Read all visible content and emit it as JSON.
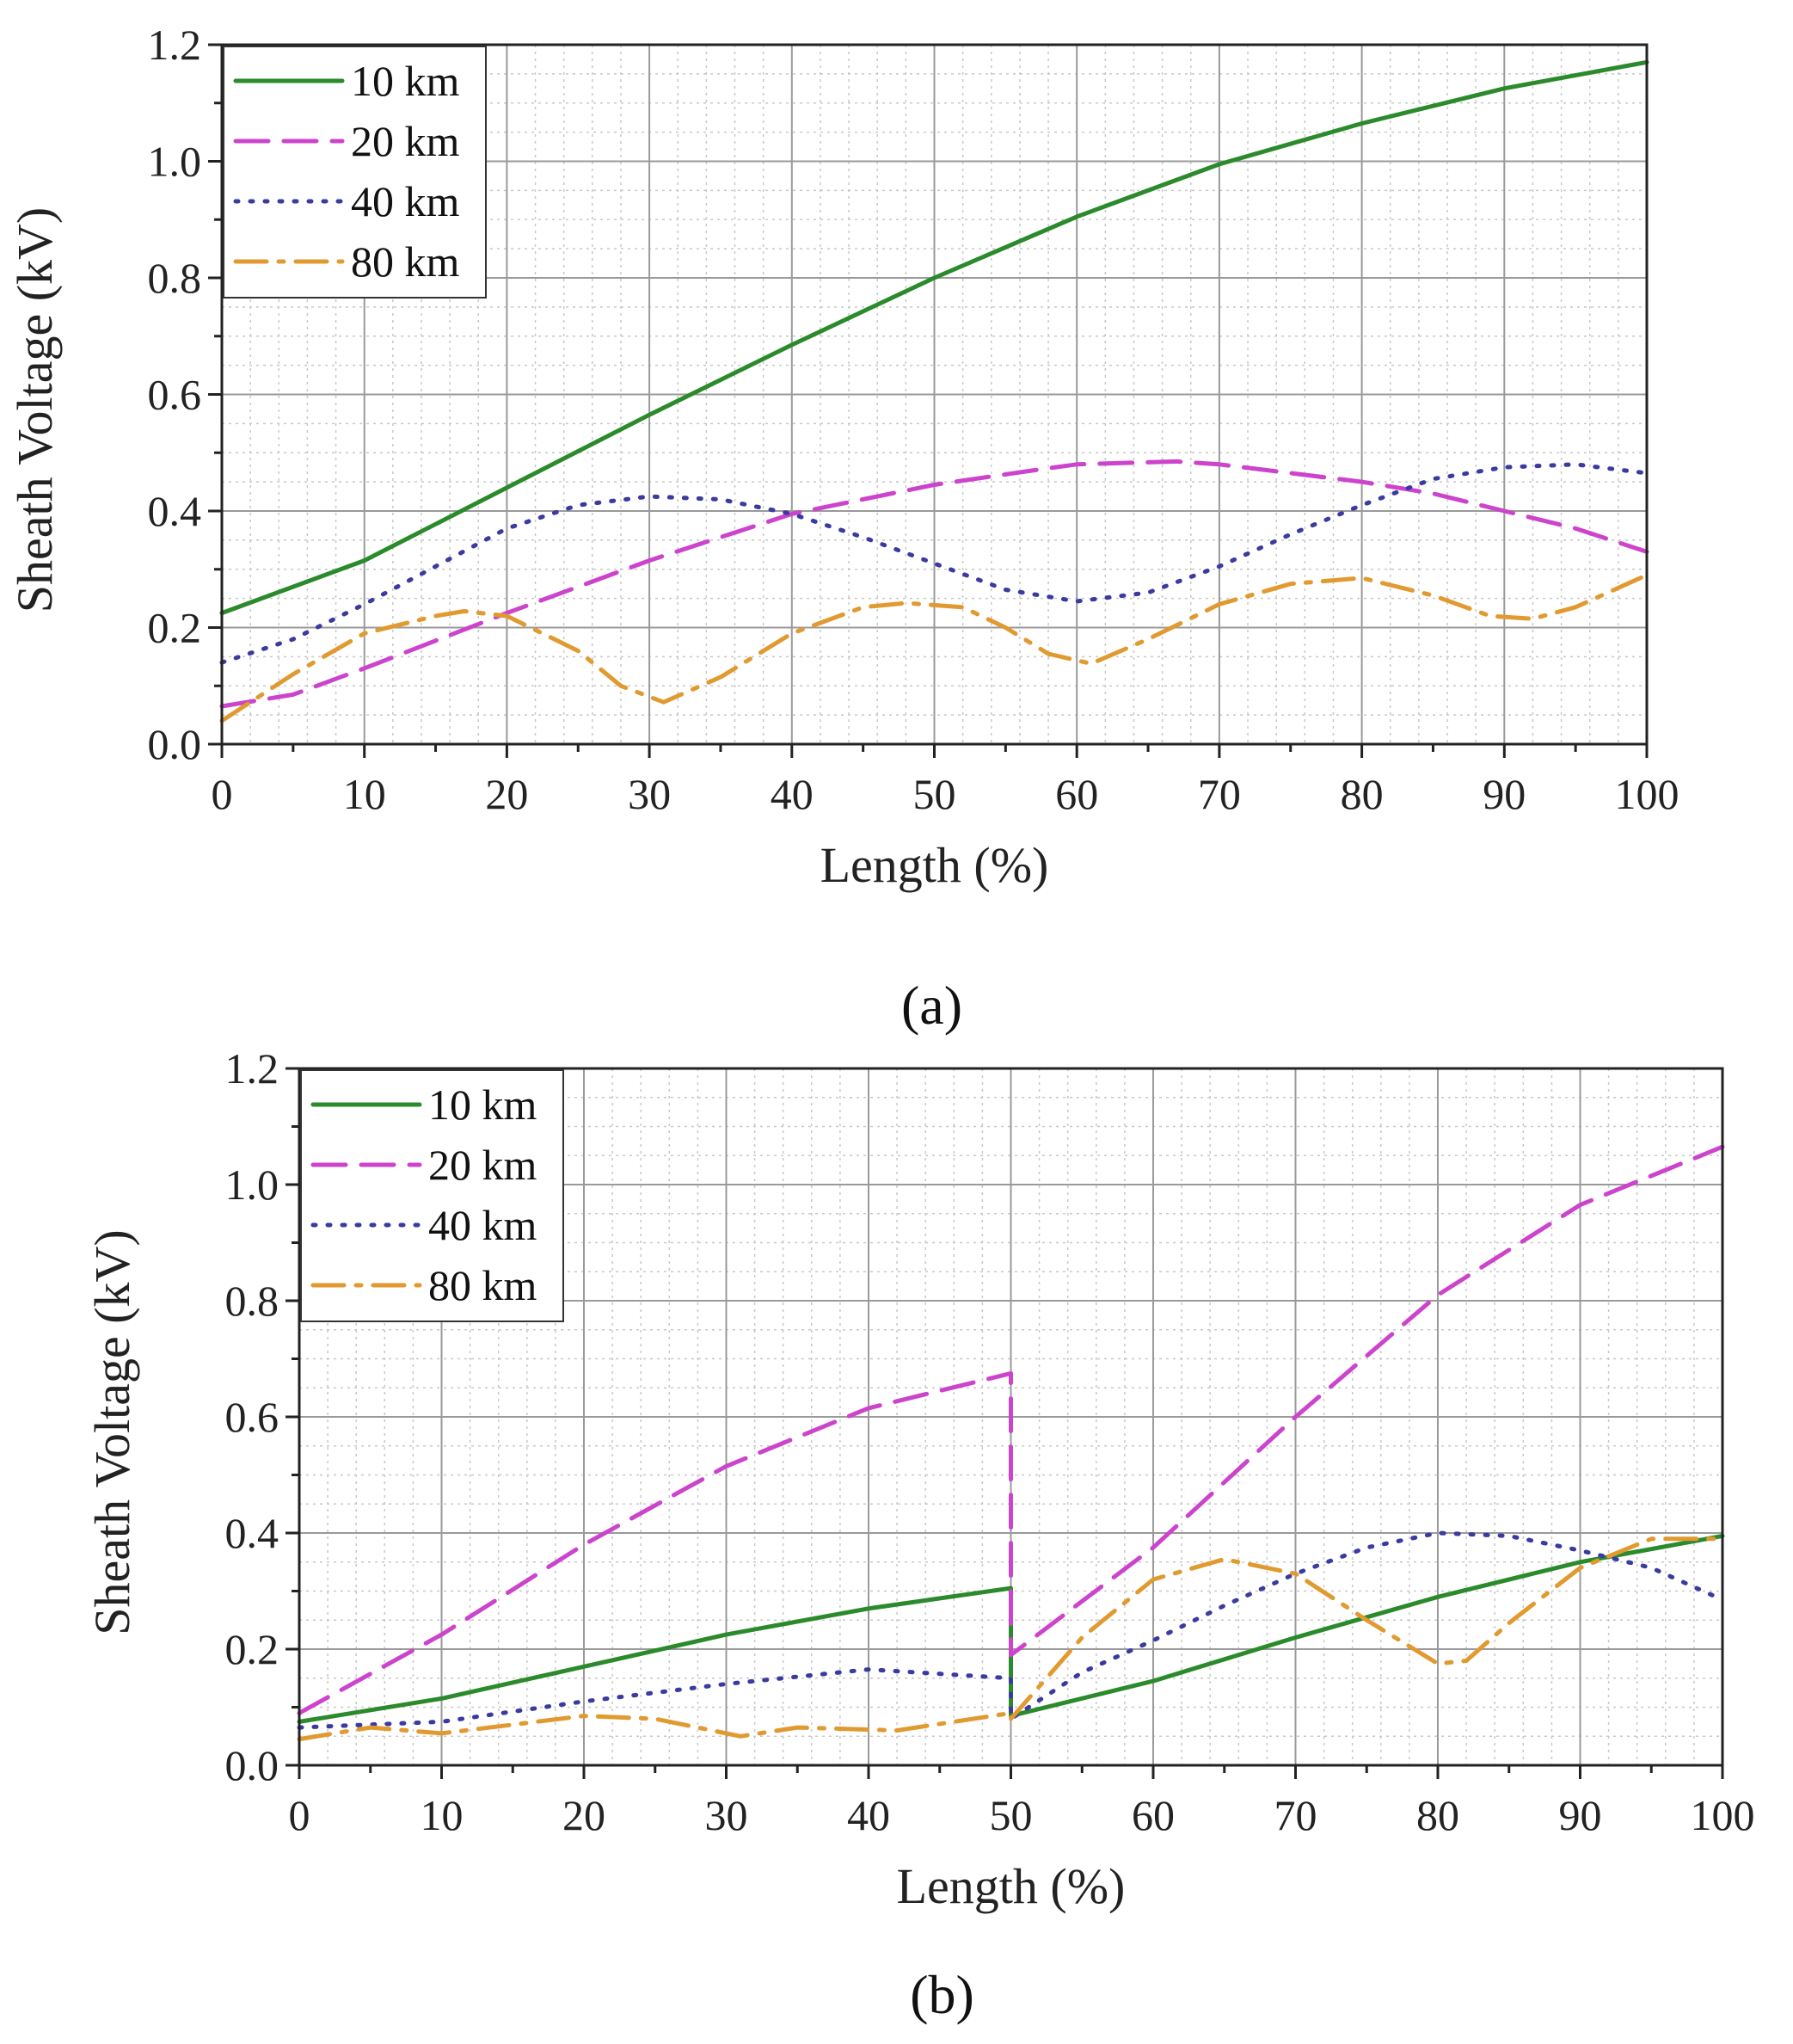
{
  "chart_data": [
    {
      "type": "line",
      "panel_label": "(a)",
      "title": "",
      "xlabel": "Length (%)",
      "ylabel": "Sheath Voltage (kV)",
      "xlim": [
        0,
        100
      ],
      "ylim": [
        0,
        1.2
      ],
      "x_ticks": [
        0,
        10,
        20,
        30,
        40,
        50,
        60,
        70,
        80,
        90,
        100
      ],
      "x_tick_labels": [
        "0",
        "10",
        "20",
        "30",
        "40",
        "50",
        "60",
        "70",
        "80",
        "90",
        "100"
      ],
      "y_ticks": [
        0,
        0.2,
        0.4,
        0.6,
        0.8,
        1.0,
        1.2
      ],
      "y_tick_labels": [
        "0.0",
        "0.2",
        "0.4",
        "0.6",
        "0.8",
        "1.0",
        "1.2"
      ],
      "grid": true,
      "legend_position": "top-left",
      "series": [
        {
          "name": "10 km",
          "color": "#2b8a2b",
          "style": "solid",
          "x": [
            0,
            10,
            20,
            30,
            40,
            50,
            60,
            70,
            80,
            90,
            100
          ],
          "y": [
            0.225,
            0.315,
            0.44,
            0.565,
            0.685,
            0.8,
            0.905,
            0.995,
            1.065,
            1.125,
            1.17
          ]
        },
        {
          "name": "20 km",
          "color": "#cc44cc",
          "style": "dash",
          "x": [
            0,
            5,
            10,
            20,
            30,
            40,
            50,
            57,
            60,
            67,
            70,
            80,
            85,
            90,
            95,
            100
          ],
          "y": [
            0.065,
            0.085,
            0.13,
            0.225,
            0.315,
            0.395,
            0.445,
            0.47,
            0.48,
            0.485,
            0.48,
            0.45,
            0.43,
            0.4,
            0.37,
            0.33
          ]
        },
        {
          "name": "40 km",
          "color": "#3a3aa0",
          "style": "dot",
          "x": [
            0,
            5,
            10,
            15,
            20,
            25,
            30,
            35,
            40,
            45,
            50,
            55,
            60,
            65,
            70,
            75,
            80,
            85,
            90,
            95,
            100
          ],
          "y": [
            0.14,
            0.18,
            0.24,
            0.305,
            0.37,
            0.41,
            0.425,
            0.42,
            0.395,
            0.355,
            0.31,
            0.265,
            0.245,
            0.26,
            0.305,
            0.36,
            0.41,
            0.455,
            0.475,
            0.48,
            0.465
          ]
        },
        {
          "name": "80 km",
          "color": "#e09a30",
          "style": "dashdot",
          "x": [
            0,
            5,
            10,
            15,
            17,
            20,
            25,
            28,
            31,
            35,
            40,
            45,
            48,
            52,
            55,
            58,
            61,
            65,
            70,
            75,
            80,
            85,
            89,
            92,
            95,
            100
          ],
          "y": [
            0.04,
            0.12,
            0.19,
            0.22,
            0.228,
            0.22,
            0.16,
            0.1,
            0.072,
            0.115,
            0.19,
            0.235,
            0.242,
            0.235,
            0.2,
            0.155,
            0.138,
            0.18,
            0.24,
            0.275,
            0.285,
            0.255,
            0.22,
            0.215,
            0.235,
            0.29
          ]
        }
      ]
    },
    {
      "type": "line",
      "panel_label": "(b)",
      "title": "",
      "xlabel": "Length (%)",
      "ylabel": "Sheath Voltage (kV)",
      "xlim": [
        0,
        100
      ],
      "ylim": [
        0,
        1.2
      ],
      "x_ticks": [
        0,
        10,
        20,
        30,
        40,
        50,
        60,
        70,
        80,
        90,
        100
      ],
      "x_tick_labels": [
        "0",
        "10",
        "20",
        "30",
        "40",
        "50",
        "60",
        "70",
        "80",
        "90",
        "100"
      ],
      "y_ticks": [
        0,
        0.2,
        0.4,
        0.6,
        0.8,
        1.0,
        1.2
      ],
      "y_tick_labels": [
        "0.0",
        "0.2",
        "0.4",
        "0.6",
        "0.8",
        "1.0",
        "1.2"
      ],
      "grid": true,
      "legend_position": "top-left",
      "series": [
        {
          "name": "10 km",
          "color": "#2b8a2b",
          "style": "solid",
          "x": [
            0,
            10,
            20,
            30,
            40,
            50,
            50,
            60,
            70,
            80,
            90,
            100
          ],
          "y": [
            0.075,
            0.115,
            0.17,
            0.225,
            0.27,
            0.305,
            0.085,
            0.145,
            0.22,
            0.29,
            0.35,
            0.395
          ]
        },
        {
          "name": "20 km",
          "color": "#cc44cc",
          "style": "dash",
          "x": [
            0,
            10,
            20,
            30,
            40,
            50,
            50,
            60,
            70,
            80,
            90,
            100
          ],
          "y": [
            0.09,
            0.225,
            0.38,
            0.515,
            0.615,
            0.675,
            0.19,
            0.375,
            0.6,
            0.81,
            0.965,
            1.065
          ]
        },
        {
          "name": "40 km",
          "color": "#3a3aa0",
          "style": "dot",
          "x": [
            0,
            10,
            20,
            30,
            40,
            50,
            50,
            55,
            60,
            65,
            70,
            75,
            80,
            85,
            90,
            95,
            100
          ],
          "y": [
            0.065,
            0.075,
            0.11,
            0.14,
            0.165,
            0.15,
            0.08,
            0.16,
            0.215,
            0.275,
            0.33,
            0.375,
            0.4,
            0.395,
            0.37,
            0.34,
            0.285
          ]
        },
        {
          "name": "80 km",
          "color": "#e09a30",
          "style": "dashdot",
          "x": [
            0,
            5,
            10,
            15,
            20,
            25,
            31,
            35,
            42,
            46,
            50,
            50,
            55,
            60,
            65,
            70,
            75,
            80,
            82,
            85,
            90,
            95,
            100
          ],
          "y": [
            0.045,
            0.065,
            0.055,
            0.07,
            0.085,
            0.08,
            0.05,
            0.065,
            0.06,
            0.075,
            0.09,
            0.08,
            0.22,
            0.32,
            0.355,
            0.33,
            0.25,
            0.175,
            0.18,
            0.245,
            0.34,
            0.39,
            0.39
          ]
        }
      ]
    }
  ]
}
